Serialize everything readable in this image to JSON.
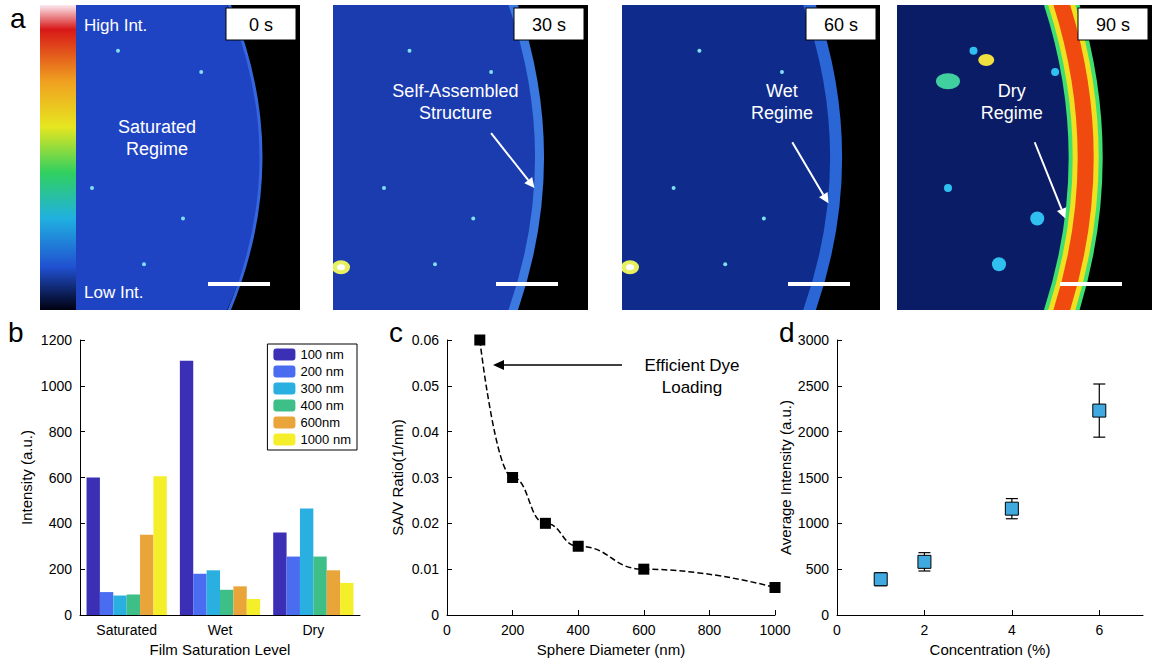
{
  "images": {
    "panel": "a",
    "colorbar": {
      "max_label": "High Int.",
      "min_label": "Low Int."
    },
    "frames": [
      {
        "time": "0 s",
        "label": "Saturated Regime"
      },
      {
        "time": "30 s",
        "label": "Self-Assembled Structure"
      },
      {
        "time": "60 s",
        "label": "Wet Regime"
      },
      {
        "time": "90 s",
        "label": "Dry Regime"
      }
    ]
  },
  "chart_data": [
    {
      "panel": "b",
      "type": "bar",
      "categories": [
        "Saturated",
        "Wet",
        "Dry"
      ],
      "series": [
        {
          "name": "100 nm",
          "color": "#3a2fb5",
          "values": [
            600,
            1110,
            360
          ]
        },
        {
          "name": "200 nm",
          "color": "#4a6cf0",
          "values": [
            100,
            180,
            255
          ]
        },
        {
          "name": "300 nm",
          "color": "#2ab0e0",
          "values": [
            85,
            195,
            465
          ]
        },
        {
          "name": "400 nm",
          "color": "#3dbf87",
          "values": [
            90,
            110,
            255
          ]
        },
        {
          "name": "600nm",
          "color": "#eaa53a",
          "values": [
            350,
            125,
            195
          ]
        },
        {
          "name": "1000 nm",
          "color": "#f5ee2a",
          "values": [
            605,
            70,
            140
          ]
        }
      ],
      "xlabel": "Film Saturation Level",
      "ylabel": "Intensity (a.u.)",
      "ylim": [
        0,
        1200
      ],
      "yticks": [
        0,
        200,
        400,
        600,
        800,
        1000,
        1200
      ],
      "legend": "upper right",
      "grid": false
    },
    {
      "panel": "c",
      "type": "line",
      "x": [
        100,
        200,
        300,
        400,
        600,
        1000
      ],
      "values": [
        0.06,
        0.03,
        0.02,
        0.015,
        0.01,
        0.006
      ],
      "color": "#000000",
      "marker": "square",
      "line_style": "dashed",
      "xlabel": "Sphere Diameter (nm)",
      "ylabel": "SA/V Ratio(1/nm)",
      "xlim": [
        0,
        1000
      ],
      "xticks": [
        0,
        200,
        400,
        600,
        800,
        1000
      ],
      "ylim": [
        0,
        0.06
      ],
      "yticks": [
        0,
        0.01,
        0.02,
        0.03,
        0.04,
        0.05,
        0.06
      ],
      "annotation": "Efficient Dye Loading",
      "grid": false
    },
    {
      "panel": "d",
      "type": "scatter",
      "x": [
        1,
        2,
        4,
        6
      ],
      "values": [
        390,
        580,
        1160,
        2230
      ],
      "errors": [
        70,
        100,
        110,
        290
      ],
      "color": "#3fa9e0",
      "marker": "square",
      "xlabel": "Concentration (%)",
      "ylabel": "Average Intensity (a.u.)",
      "xlim": [
        0,
        7
      ],
      "xticks": [
        0,
        2,
        4,
        6
      ],
      "ylim": [
        0,
        3000
      ],
      "yticks": [
        0,
        500,
        1000,
        1500,
        2000,
        2500,
        3000
      ],
      "grid": false
    }
  ]
}
